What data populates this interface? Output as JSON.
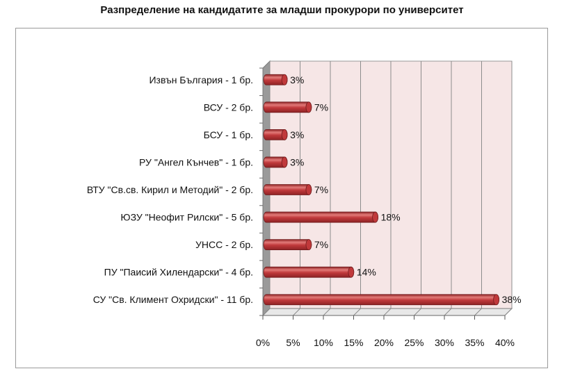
{
  "chart_data": {
    "type": "bar",
    "orientation": "horizontal",
    "title": "Разпределение на кандидатите за младши прокурори по университет",
    "categories": [
      "СУ \"Св. Климент Охридски\" - 11 бр.",
      "ПУ \"Паисий Хилендарски\" - 4 бр.",
      "УНСС - 2 бр.",
      "ЮЗУ \"Неофит Рилски\" - 5 бр.",
      "ВТУ \"Св.св. Кирил и Методий\" - 2 бр.",
      "РУ \"Ангел Кънчев\" - 1 бр.",
      "БСУ - 1 бр.",
      "ВСУ - 2 бр.",
      "Извън България - 1 бр."
    ],
    "values": [
      38,
      14,
      7,
      18,
      7,
      3,
      3,
      7,
      3
    ],
    "value_labels": [
      "38%",
      "14%",
      "7%",
      "18%",
      "7%",
      "3%",
      "3%",
      "7%",
      "3%"
    ],
    "x_ticks": [
      "0%",
      "5%",
      "10%",
      "15%",
      "20%",
      "25%",
      "30%",
      "35%",
      "40%"
    ],
    "xlim": [
      0,
      40
    ],
    "grid": true,
    "colors": {
      "bar": "#c0393b",
      "bar_dark": "#8e2325",
      "bar_light": "#e27a78",
      "wall": "#f6e6e6",
      "gridline": "#8c8c8c"
    }
  }
}
